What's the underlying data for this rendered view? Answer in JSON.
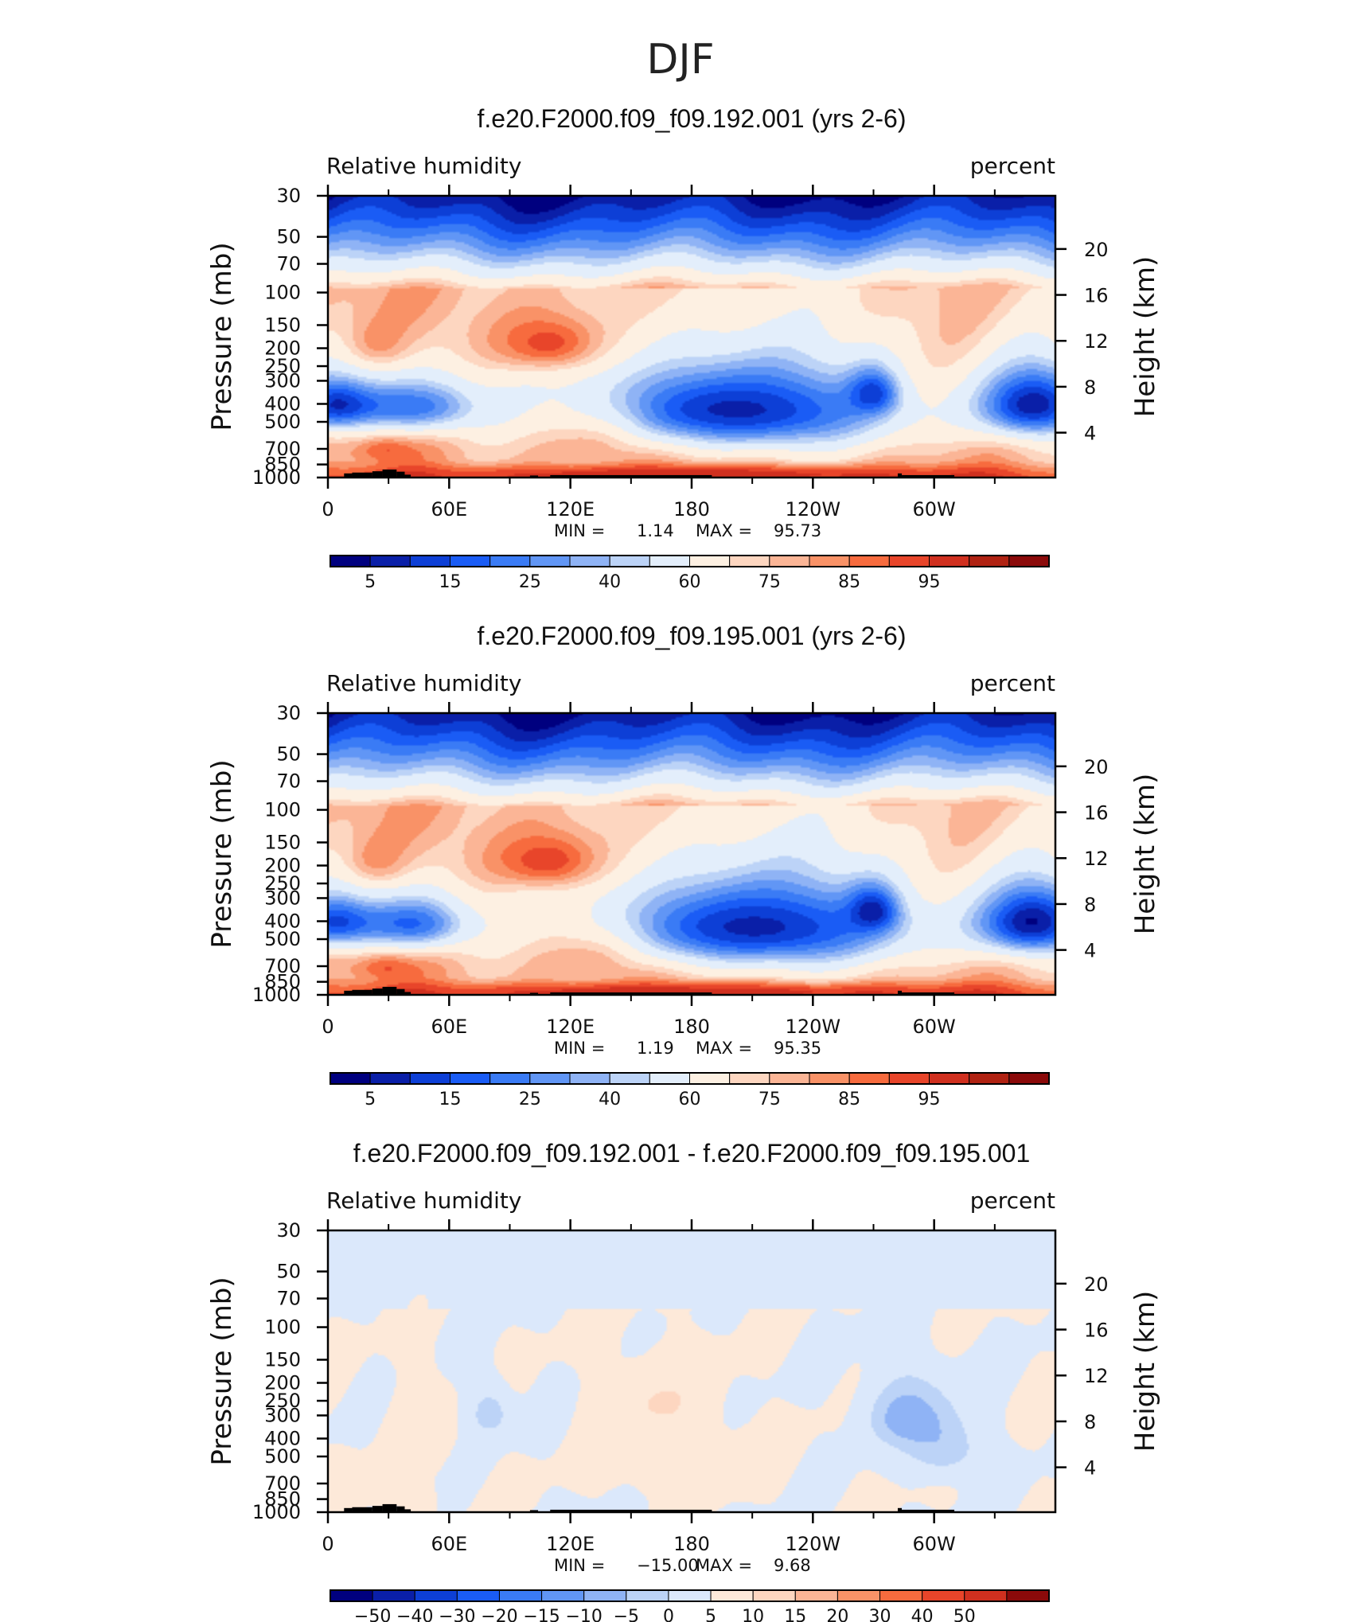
{
  "figure": {
    "title": "DJF"
  },
  "colors": {
    "abs_colorbar": [
      "#00007f",
      "#0a1fa8",
      "#0d3fd6",
      "#1a5cf5",
      "#3a7bf5",
      "#6196f5",
      "#8fb3f5",
      "#bcd3f7",
      "#e3eefb",
      "#fdf0e2",
      "#fdd6c0",
      "#fbb596",
      "#f99267",
      "#f76b3e",
      "#e8452a",
      "#d0301f",
      "#b02212",
      "#8b0a0a"
    ],
    "diff_colorbar": [
      "#00007f",
      "#0a1fa8",
      "#0d3fd6",
      "#1a5cf5",
      "#3a7bf5",
      "#6196f5",
      "#8fb3f5",
      "#bcd3f7",
      "#dbe8fb",
      "#fde9d9",
      "#fdd6c0",
      "#fbb596",
      "#f99267",
      "#f76b3e",
      "#e8452a",
      "#d0301f",
      "#8b0a0a"
    ],
    "topography": "#000000"
  },
  "chart_data": [
    {
      "type": "heatmap",
      "title": "f.e20.F2000.f09_f09.192.001 (yrs 2-6)",
      "left_label": "Relative humidity",
      "right_label": "percent",
      "ylabel": "Pressure (mb)",
      "ylabel_right": "Height (km)",
      "x_ticks": [
        "0",
        "60E",
        "120E",
        "180",
        "120W",
        "60W"
      ],
      "x_tick_lon": [
        0,
        60,
        120,
        180,
        240,
        300
      ],
      "xlim": [
        0,
        360
      ],
      "y_ticks": [
        "30",
        "50",
        "70",
        "100",
        "150",
        "200",
        "250",
        "300",
        "400",
        "500",
        "700",
        "850",
        "1000"
      ],
      "y_tick_values": [
        30,
        50,
        70,
        100,
        150,
        200,
        250,
        300,
        400,
        500,
        700,
        850,
        1000
      ],
      "ylim": [
        1000,
        30
      ],
      "height_ticks": [
        "20",
        "16",
        "12",
        "8",
        "4"
      ],
      "height_km": [
        20,
        16,
        12,
        8,
        4
      ],
      "stats": {
        "min_label": "MIN =",
        "min": "1.14",
        "max_label": "MAX =",
        "max": "95.73"
      },
      "colorbar_labels": [
        "5",
        "15",
        "25",
        "40",
        "60",
        "75",
        "85",
        "95"
      ],
      "features": [
        {
          "lon": 200,
          "p": 430,
          "value": 8,
          "rx": 90,
          "ry": 260
        },
        {
          "lon": 350,
          "p": 400,
          "value": 10,
          "rx": 30,
          "ry": 200
        },
        {
          "lon": 0,
          "p": 400,
          "value": 22,
          "rx": 22,
          "ry": 160
        },
        {
          "lon": 42,
          "p": 410,
          "value": 25,
          "rx": 35,
          "ry": 160
        },
        {
          "lon": 270,
          "p": 340,
          "value": 38,
          "rx": 12,
          "ry": 100
        },
        {
          "lon": 135,
          "p": 560,
          "value": 85,
          "rx": 35,
          "ry": 220
        },
        {
          "lon": 110,
          "p": 190,
          "value": 90,
          "rx": 30,
          "ry": 70
        },
        {
          "lon": 25,
          "p": 200,
          "value": 82,
          "rx": 12,
          "ry": 50
        },
        {
          "lon": 180,
          "p": 960,
          "value": 90,
          "rx": 120,
          "ry": 90
        },
        {
          "lon": 30,
          "p": 700,
          "value": 82,
          "rx": 15,
          "ry": 120
        }
      ]
    },
    {
      "type": "heatmap",
      "title": "f.e20.F2000.f09_f09.195.001 (yrs 2-6)",
      "left_label": "Relative humidity",
      "right_label": "percent",
      "ylabel": "Pressure (mb)",
      "ylabel_right": "Height (km)",
      "x_ticks": [
        "0",
        "60E",
        "120E",
        "180",
        "120W",
        "60W"
      ],
      "x_tick_lon": [
        0,
        60,
        120,
        180,
        240,
        300
      ],
      "xlim": [
        0,
        360
      ],
      "y_ticks": [
        "30",
        "50",
        "70",
        "100",
        "150",
        "200",
        "250",
        "300",
        "400",
        "500",
        "700",
        "850",
        "1000"
      ],
      "y_tick_values": [
        30,
        50,
        70,
        100,
        150,
        200,
        250,
        300,
        400,
        500,
        700,
        850,
        1000
      ],
      "ylim": [
        1000,
        30
      ],
      "height_ticks": [
        "20",
        "16",
        "12",
        "8",
        "4"
      ],
      "height_km": [
        20,
        16,
        12,
        8,
        4
      ],
      "stats": {
        "min_label": "MIN =",
        "min": "1.19",
        "max_label": "MAX =",
        "max": "95.35"
      },
      "colorbar_labels": [
        "5",
        "15",
        "25",
        "40",
        "60",
        "75",
        "85",
        "95"
      ],
      "features": [
        {
          "lon": 210,
          "p": 430,
          "value": 8,
          "rx": 90,
          "ry": 270
        },
        {
          "lon": 350,
          "p": 400,
          "value": 10,
          "rx": 30,
          "ry": 200
        },
        {
          "lon": 0,
          "p": 400,
          "value": 22,
          "rx": 22,
          "ry": 160
        },
        {
          "lon": 42,
          "p": 410,
          "value": 22,
          "rx": 30,
          "ry": 160
        },
        {
          "lon": 270,
          "p": 340,
          "value": 38,
          "rx": 12,
          "ry": 100
        },
        {
          "lon": 135,
          "p": 560,
          "value": 85,
          "rx": 35,
          "ry": 220
        },
        {
          "lon": 110,
          "p": 190,
          "value": 90,
          "rx": 30,
          "ry": 70
        },
        {
          "lon": 25,
          "p": 200,
          "value": 82,
          "rx": 12,
          "ry": 50
        },
        {
          "lon": 180,
          "p": 960,
          "value": 90,
          "rx": 120,
          "ry": 90
        },
        {
          "lon": 30,
          "p": 700,
          "value": 82,
          "rx": 15,
          "ry": 120
        }
      ]
    },
    {
      "type": "heatmap",
      "title": "f.e20.F2000.f09_f09.192.001 - f.e20.F2000.f09_f09.195.001",
      "left_label": "Relative humidity",
      "right_label": "percent",
      "ylabel": "Pressure (mb)",
      "ylabel_right": "Height (km)",
      "x_ticks": [
        "0",
        "60E",
        "120E",
        "180",
        "120W",
        "60W"
      ],
      "x_tick_lon": [
        0,
        60,
        120,
        180,
        240,
        300
      ],
      "xlim": [
        0,
        360
      ],
      "y_ticks": [
        "30",
        "50",
        "70",
        "100",
        "150",
        "200",
        "250",
        "300",
        "400",
        "500",
        "700",
        "850",
        "1000"
      ],
      "y_tick_values": [
        30,
        50,
        70,
        100,
        150,
        200,
        250,
        300,
        400,
        500,
        700,
        850,
        1000
      ],
      "ylim": [
        1000,
        30
      ],
      "height_ticks": [
        "20",
        "16",
        "12",
        "8",
        "4"
      ],
      "height_km": [
        20,
        16,
        12,
        8,
        4
      ],
      "stats": {
        "min_label": "MIN =",
        "min": "−15.00",
        "max_label": "MAX =",
        "max": "9.68"
      },
      "colorbar_labels": [
        "−50",
        "−40",
        "−30",
        "−20",
        "−15",
        "−10",
        "−5",
        "0",
        "5",
        "10",
        "15",
        "20",
        "30",
        "40",
        "50"
      ],
      "features": [
        {
          "lon": 285,
          "p": 300,
          "value": -12,
          "rx": 18,
          "ry": 120
        },
        {
          "lon": 305,
          "p": 450,
          "value": -9,
          "rx": 18,
          "ry": 180
        },
        {
          "lon": 80,
          "p": 290,
          "value": -8,
          "rx": 10,
          "ry": 90
        },
        {
          "lon": 175,
          "p": 550,
          "value": 4,
          "rx": 30,
          "ry": 250
        },
        {
          "lon": 45,
          "p": 380,
          "value": 3,
          "rx": 15,
          "ry": 200
        },
        {
          "lon": 160,
          "p": 250,
          "value": 4,
          "rx": 25,
          "ry": 100
        },
        {
          "lon": 20,
          "p": 800,
          "value": 2,
          "rx": 30,
          "ry": 150
        }
      ]
    }
  ]
}
